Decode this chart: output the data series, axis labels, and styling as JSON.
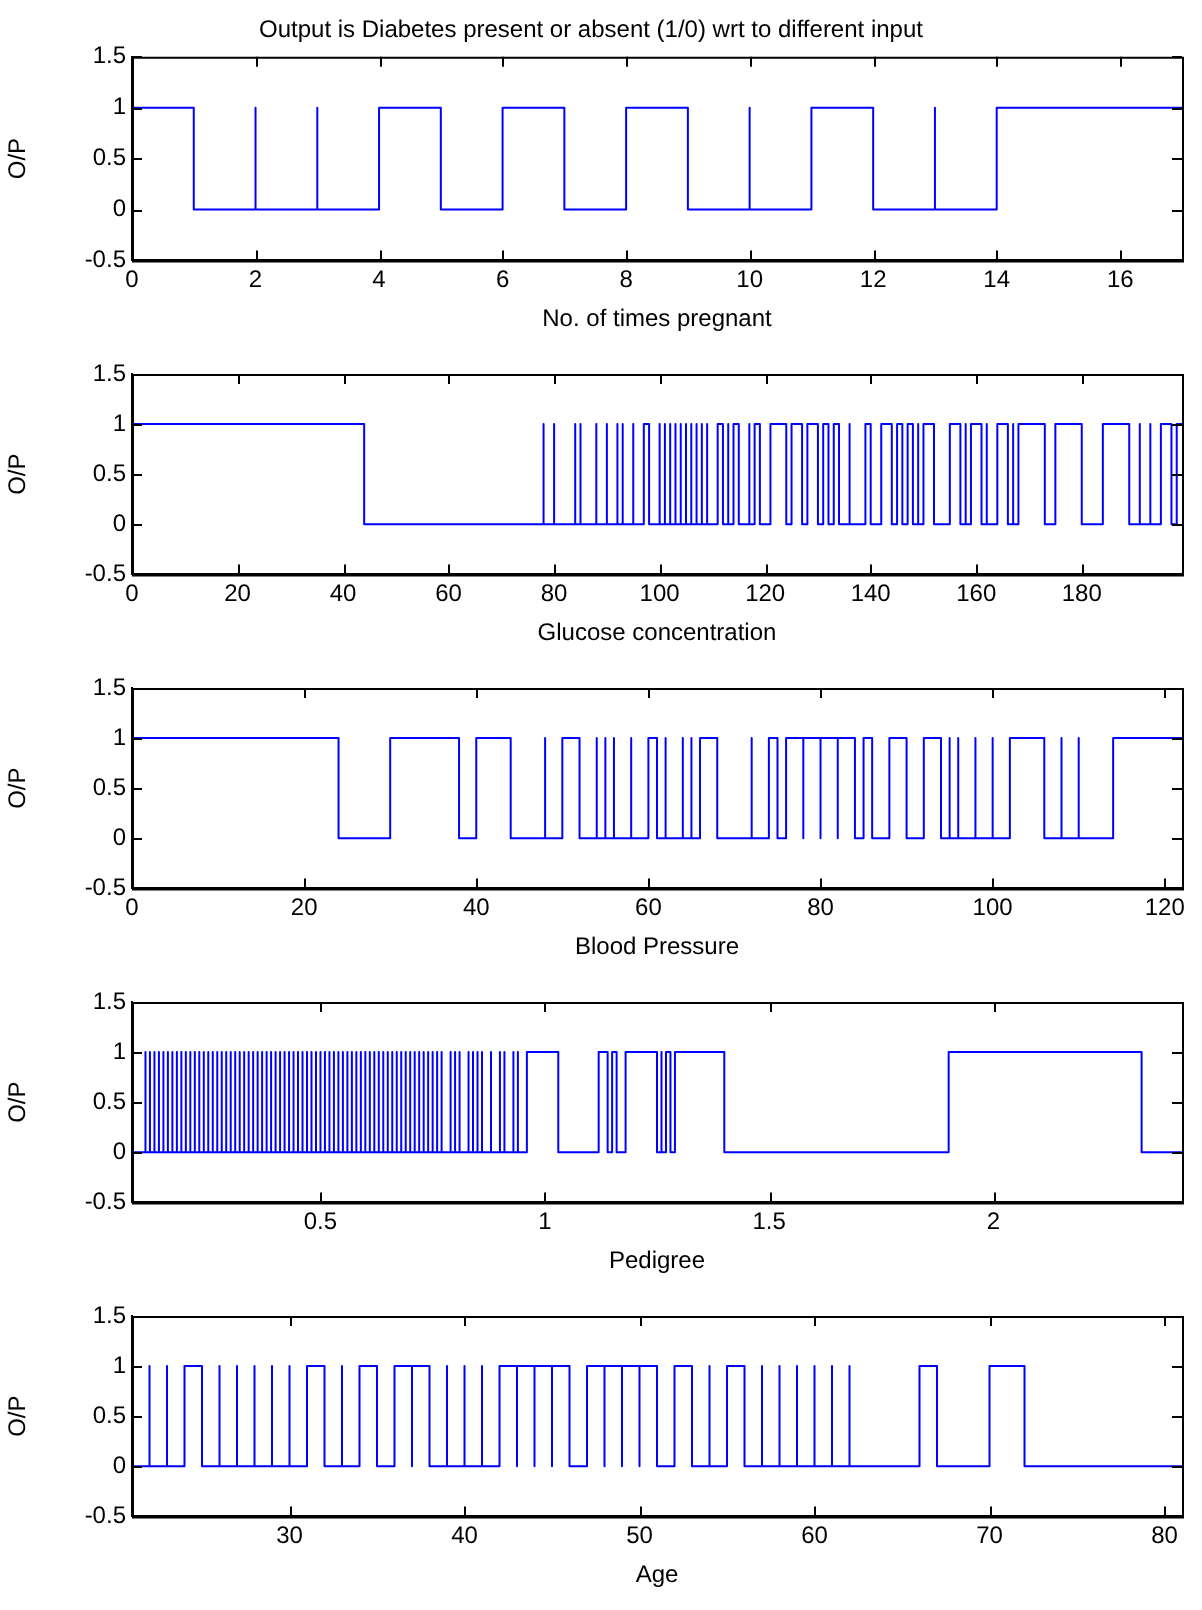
{
  "chart_data": [
    {
      "type": "step",
      "title": "Output is Diabetes present or absent (1/0) wrt to different input",
      "xlabel": "No. of times pregnant",
      "ylabel": "O/P",
      "color": "#0000ff",
      "x": [
        0,
        1,
        2,
        2,
        3,
        3,
        4,
        5,
        6,
        7,
        8,
        9,
        10,
        10,
        11,
        12,
        13,
        13,
        14,
        17
      ],
      "values": [
        1,
        0,
        1,
        0,
        1,
        0,
        1,
        0,
        1,
        0,
        1,
        0,
        1,
        0,
        1,
        0,
        1,
        0,
        1,
        1
      ],
      "xlim": [
        0,
        17
      ],
      "xticks": [
        0,
        2,
        4,
        6,
        8,
        10,
        12,
        14,
        16
      ],
      "ylim": [
        -0.5,
        1.5
      ],
      "yticks": [
        -0.5,
        0,
        0.5,
        1,
        1.5
      ],
      "grid": false,
      "legend": false
    },
    {
      "type": "step",
      "xlabel": "Glucose concentration",
      "ylabel": "O/P",
      "color": "#0000ff",
      "x": [
        0,
        44,
        78,
        78,
        80,
        80,
        84,
        84,
        85,
        85,
        88,
        88,
        90,
        90,
        92,
        92,
        93,
        93,
        95,
        95,
        97,
        98,
        100,
        100,
        101,
        101,
        102,
        102,
        103,
        103,
        104,
        104,
        105,
        105,
        106,
        106,
        107,
        107,
        108,
        108,
        109,
        109,
        111,
        112,
        113,
        113,
        114,
        115,
        117,
        117,
        118,
        119,
        121,
        124,
        125,
        127,
        128,
        130,
        131,
        132,
        133,
        134,
        136,
        136,
        139,
        140,
        142,
        144,
        145,
        146,
        147,
        148,
        149,
        149,
        150,
        152,
        155,
        157,
        158,
        158,
        159,
        161,
        162,
        162,
        164,
        166,
        167,
        167,
        168,
        173,
        175,
        180,
        184,
        189,
        191,
        191,
        193,
        193,
        195,
        197,
        198,
        199
      ],
      "values": [
        1,
        0,
        1,
        0,
        1,
        0,
        1,
        0,
        1,
        0,
        1,
        0,
        1,
        0,
        1,
        0,
        1,
        0,
        1,
        0,
        1,
        0,
        1,
        0,
        1,
        0,
        1,
        0,
        1,
        0,
        1,
        0,
        1,
        0,
        1,
        0,
        1,
        0,
        1,
        0,
        1,
        0,
        1,
        0,
        1,
        0,
        1,
        0,
        1,
        0,
        1,
        0,
        1,
        0,
        1,
        0,
        1,
        0,
        1,
        0,
        1,
        0,
        1,
        0,
        1,
        0,
        1,
        0,
        1,
        0,
        1,
        0,
        1,
        0,
        1,
        0,
        1,
        0,
        1,
        0,
        1,
        0,
        1,
        0,
        1,
        0,
        1,
        0,
        1,
        0,
        1,
        0,
        1,
        0,
        1,
        0,
        1,
        0,
        1,
        0,
        1,
        1
      ],
      "xlim": [
        0,
        199
      ],
      "xticks": [
        0,
        20,
        40,
        60,
        80,
        100,
        120,
        140,
        160,
        180
      ],
      "ylim": [
        -0.5,
        1.5
      ],
      "yticks": [
        -0.5,
        0,
        0.5,
        1,
        1.5
      ],
      "grid": false,
      "legend": false
    },
    {
      "type": "step",
      "xlabel": "Blood Pressure",
      "ylabel": "O/P",
      "color": "#0000ff",
      "x": [
        0,
        24,
        30,
        38,
        40,
        44,
        48,
        48,
        50,
        52,
        54,
        54,
        55,
        55,
        56,
        56,
        58,
        58,
        60,
        61,
        62,
        62,
        64,
        64,
        65,
        65,
        66,
        68,
        72,
        72,
        74,
        75,
        76,
        78,
        78,
        80,
        80,
        82,
        82,
        84,
        85,
        86,
        88,
        90,
        92,
        94,
        95,
        95,
        96,
        96,
        98,
        98,
        100,
        100,
        102,
        106,
        108,
        108,
        110,
        110,
        114,
        122
      ],
      "values": [
        1,
        0,
        1,
        0,
        1,
        0,
        1,
        0,
        1,
        0,
        1,
        0,
        1,
        0,
        1,
        0,
        1,
        0,
        1,
        0,
        1,
        0,
        1,
        0,
        1,
        0,
        1,
        0,
        1,
        0,
        1,
        0,
        1,
        0,
        1,
        0,
        1,
        0,
        1,
        0,
        1,
        0,
        1,
        0,
        1,
        0,
        1,
        0,
        1,
        0,
        1,
        0,
        1,
        0,
        1,
        0,
        1,
        0,
        1,
        0,
        1,
        1
      ],
      "xlim": [
        0,
        122
      ],
      "xticks": [
        0,
        20,
        40,
        60,
        80,
        100,
        120
      ],
      "ylim": [
        -0.5,
        1.5
      ],
      "yticks": [
        -0.5,
        0,
        0.5,
        1,
        1.5
      ],
      "grid": false,
      "legend": false
    },
    {
      "type": "step",
      "xlabel": "Pedigree",
      "ylabel": "O/P",
      "color": "#0000ff",
      "x": [
        0.08,
        0.11,
        0.11,
        0.12,
        0.12,
        0.13,
        0.13,
        0.14,
        0.14,
        0.15,
        0.15,
        0.16,
        0.16,
        0.17,
        0.17,
        0.18,
        0.18,
        0.19,
        0.19,
        0.2,
        0.2,
        0.21,
        0.21,
        0.22,
        0.22,
        0.23,
        0.23,
        0.24,
        0.24,
        0.25,
        0.25,
        0.26,
        0.26,
        0.27,
        0.27,
        0.28,
        0.28,
        0.29,
        0.29,
        0.3,
        0.3,
        0.31,
        0.31,
        0.32,
        0.32,
        0.33,
        0.33,
        0.34,
        0.34,
        0.35,
        0.35,
        0.36,
        0.36,
        0.37,
        0.37,
        0.38,
        0.38,
        0.39,
        0.39,
        0.4,
        0.4,
        0.41,
        0.41,
        0.42,
        0.42,
        0.43,
        0.43,
        0.44,
        0.44,
        0.45,
        0.45,
        0.46,
        0.46,
        0.47,
        0.47,
        0.48,
        0.48,
        0.49,
        0.49,
        0.5,
        0.5,
        0.51,
        0.51,
        0.52,
        0.52,
        0.53,
        0.53,
        0.54,
        0.54,
        0.55,
        0.55,
        0.56,
        0.56,
        0.57,
        0.57,
        0.58,
        0.58,
        0.59,
        0.59,
        0.6,
        0.6,
        0.61,
        0.61,
        0.62,
        0.62,
        0.63,
        0.63,
        0.64,
        0.64,
        0.65,
        0.65,
        0.66,
        0.66,
        0.67,
        0.67,
        0.68,
        0.68,
        0.69,
        0.69,
        0.7,
        0.7,
        0.71,
        0.71,
        0.72,
        0.72,
        0.73,
        0.73,
        0.74,
        0.74,
        0.75,
        0.75,
        0.76,
        0.76,
        0.77,
        0.77,
        0.79,
        0.79,
        0.8,
        0.8,
        0.81,
        0.81,
        0.83,
        0.83,
        0.84,
        0.84,
        0.85,
        0.85,
        0.86,
        0.86,
        0.88,
        0.88,
        0.9,
        0.9,
        0.91,
        0.91,
        0.93,
        0.93,
        0.94,
        0.94,
        0.96,
        1.03,
        1.12,
        1.14,
        1.15,
        1.16,
        1.18,
        1.25,
        1.26,
        1.26,
        1.27,
        1.28,
        1.29,
        1.4,
        1.9,
        2.33,
        2.42
      ],
      "values": [
        0,
        1,
        0,
        1,
        0,
        1,
        0,
        1,
        0,
        1,
        0,
        1,
        0,
        1,
        0,
        1,
        0,
        1,
        0,
        1,
        0,
        1,
        0,
        1,
        0,
        1,
        0,
        1,
        0,
        1,
        0,
        1,
        0,
        1,
        0,
        1,
        0,
        1,
        0,
        1,
        0,
        1,
        0,
        1,
        0,
        1,
        0,
        1,
        0,
        1,
        0,
        1,
        0,
        1,
        0,
        1,
        0,
        1,
        0,
        1,
        0,
        1,
        0,
        1,
        0,
        1,
        0,
        1,
        0,
        1,
        0,
        1,
        0,
        1,
        0,
        1,
        0,
        1,
        0,
        1,
        0,
        1,
        0,
        1,
        0,
        1,
        0,
        1,
        0,
        1,
        0,
        1,
        0,
        1,
        0,
        1,
        0,
        1,
        0,
        1,
        0,
        1,
        0,
        1,
        0,
        1,
        0,
        1,
        0,
        1,
        0,
        1,
        0,
        1,
        0,
        1,
        0,
        1,
        0,
        1,
        0,
        1,
        0,
        1,
        0,
        1,
        0,
        1,
        0,
        1,
        0,
        1,
        0,
        1,
        0,
        1,
        0,
        1,
        0,
        1,
        0,
        1,
        0,
        1,
        0,
        1,
        0,
        1,
        0,
        1,
        0,
        1,
        0,
        1,
        0,
        1,
        0,
        1,
        0,
        1,
        0,
        1,
        0,
        1,
        0,
        1,
        0,
        1,
        0,
        1,
        0,
        1,
        0,
        1,
        0,
        0
      ],
      "xlim": [
        0.08,
        2.42
      ],
      "xticks": [
        0.5,
        1,
        1.5,
        2
      ],
      "ylim": [
        -0.5,
        1.5
      ],
      "yticks": [
        -0.5,
        0,
        0.5,
        1,
        1.5
      ],
      "grid": false,
      "legend": false
    },
    {
      "type": "step",
      "xlabel": "Age",
      "ylabel": "O/P",
      "color": "#0000ff",
      "x": [
        21,
        21,
        22,
        22,
        23,
        23,
        24,
        25,
        26,
        26,
        27,
        27,
        28,
        28,
        29,
        29,
        30,
        30,
        31,
        32,
        33,
        33,
        34,
        35,
        36,
        37,
        37,
        38,
        39,
        39,
        40,
        40,
        41,
        41,
        42,
        43,
        43,
        44,
        44,
        45,
        45,
        46,
        47,
        48,
        48,
        49,
        49,
        50,
        50,
        51,
        52,
        53,
        54,
        54,
        55,
        56,
        57,
        57,
        58,
        58,
        59,
        59,
        60,
        60,
        61,
        61,
        62,
        62,
        66,
        67,
        70,
        72,
        81
      ],
      "values": [
        1,
        0,
        1,
        0,
        1,
        0,
        1,
        0,
        1,
        0,
        1,
        0,
        1,
        0,
        1,
        0,
        1,
        0,
        1,
        0,
        1,
        0,
        1,
        0,
        1,
        0,
        1,
        0,
        1,
        0,
        1,
        0,
        1,
        0,
        1,
        0,
        1,
        0,
        1,
        0,
        1,
        0,
        1,
        0,
        1,
        0,
        1,
        0,
        1,
        0,
        1,
        0,
        1,
        0,
        1,
        0,
        1,
        0,
        1,
        0,
        1,
        0,
        1,
        0,
        1,
        0,
        1,
        0,
        1,
        0,
        1,
        0,
        0
      ],
      "xlim": [
        21,
        81
      ],
      "xticks": [
        30,
        40,
        50,
        60,
        70,
        80
      ],
      "ylim": [
        -0.5,
        1.5
      ],
      "yticks": [
        -0.5,
        0,
        0.5,
        1,
        1.5
      ],
      "grid": false,
      "legend": false
    }
  ]
}
